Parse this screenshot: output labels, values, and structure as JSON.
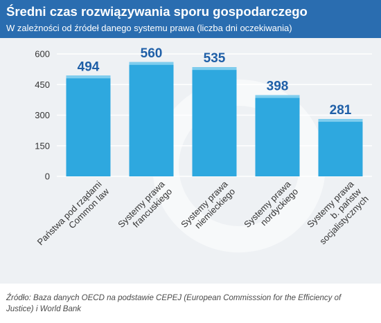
{
  "title": "Średni czas rozwiązywania sporu gospodarczego",
  "subtitle": "W zależności od źródeł danego systemu prawa (liczba dni oczekiwania)",
  "source": "Źródło: Baza danych OECD na podstawie CEPEJ (European Commisssion for the Efficiency of Justice) i World Bank",
  "colors": {
    "header": "#2a6db0",
    "bar": "#2ea8df",
    "bar_top": "#7fcdee",
    "value_label": "#1f5fa7",
    "plot_bg": "#eef1f4"
  },
  "chart_data": {
    "type": "bar",
    "categories": [
      [
        "Państwa pod rządami",
        "Common law"
      ],
      [
        "Systemy prawa",
        "francuskiego"
      ],
      [
        "Systemy prawa",
        "niemieckiego"
      ],
      [
        "Systemy prawa",
        "nordyckiego"
      ],
      [
        "Systemy prawa",
        "b. państw",
        "socjalistycznych"
      ]
    ],
    "values": [
      494,
      560,
      535,
      398,
      281
    ],
    "value_labels": [
      "494",
      "560",
      "535",
      "398",
      "281"
    ],
    "yticks": [
      0,
      150,
      300,
      450,
      600
    ],
    "ylim": [
      0,
      650
    ],
    "grid": true,
    "xlabel": "",
    "ylabel": ""
  }
}
